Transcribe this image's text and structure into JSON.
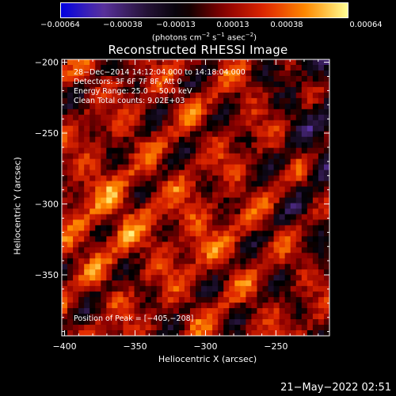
{
  "chart_data": {
    "type": "heatmap",
    "title": "Reconstructed RHESSI Image",
    "xlabel": "Heliocentric X (arcsec)",
    "ylabel": "Heliocentric Y (arcsec)",
    "xlim": [
      -402,
      -212
    ],
    "ylim": [
      -393,
      -198
    ],
    "x_ticks": [
      -400,
      -350,
      -300,
      -250
    ],
    "y_ticks": [
      -200,
      -250,
      -300,
      -350
    ],
    "x_tick_labels": [
      "−400",
      "−350",
      "−300",
      "−250"
    ],
    "y_tick_labels": [
      "−200",
      "−250",
      "−300",
      "−350"
    ],
    "colorbar": {
      "ticks": [
        -0.00064,
        -0.00038,
        -0.00013,
        0.00013,
        0.00038,
        0.00064
      ],
      "tick_labels": [
        "−0.00064",
        "−0.00038",
        "−0.00013",
        "0.00013",
        "0.00038",
        "0.00064"
      ],
      "units_label": "(photons cm",
      "units_exp1": "−2",
      "units_mid": " s",
      "units_exp2": "−1",
      "units_end": " asec",
      "units_exp3": "−2",
      "units_close": ")",
      "range": [
        -0.00064,
        0.00064
      ]
    },
    "annotations": [
      "28−Dec−2014 14:12:04.000 to 14:18:04.000",
      "Detectors: 3F 6F 7F 8F, Att 0",
      "Energy Range: 25.0 − 50.0 keV",
      "Clean     Total counts: 9.02E+03"
    ],
    "peak_label": "Position of Peak = [−405,−208]",
    "peak": [
      -405,
      -208
    ],
    "grid": false
  },
  "timestamp": "21−May−2022 02:51",
  "colors": {
    "background": "#000000",
    "foreground": "#ffffff",
    "colormap": [
      "#0000e0",
      "#5a32a0",
      "#28143c",
      "#000000",
      "#8c0000",
      "#e02800",
      "#ff8c00",
      "#ffff96"
    ]
  }
}
